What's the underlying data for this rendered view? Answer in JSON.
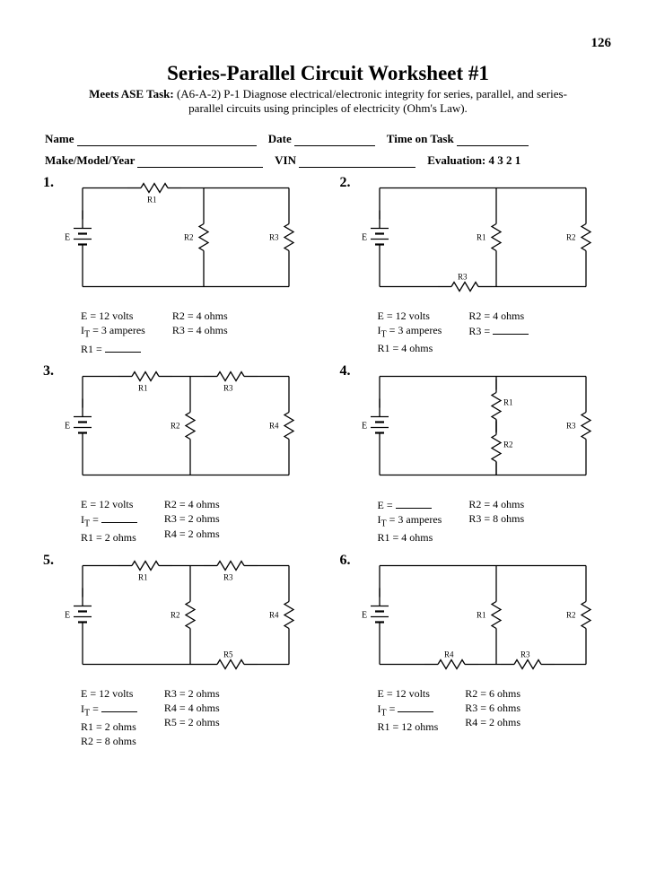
{
  "page_number": "126",
  "title": "Series-Parallel Circuit Worksheet #1",
  "subtitle_prefix": "Meets ASE Task:",
  "subtitle_body": "(A6-A-2) P-1  Diagnose electrical/electronic integrity for series, parallel, and series-parallel circuits using principles of electricity (Ohm's Law).",
  "field_labels": {
    "name": "Name",
    "date": "Date",
    "time": "Time on Task",
    "mmy": "Make/Model/Year",
    "vin": "VIN",
    "eval": "Evaluation:   4    3    2    1"
  },
  "stroke_color": "#000000",
  "label_font_size": 9,
  "problems": [
    {
      "num": "1.",
      "left": [
        "E = 12 volts",
        "I<sub>T</sub> = 3 amperes",
        "R1 = ______"
      ],
      "right": [
        "R2 = 4 ohms",
        "R3 = 4 ohms"
      ]
    },
    {
      "num": "2.",
      "left": [
        "E = 12 volts",
        "I<sub>T</sub> = 3 amperes",
        "R1 = 4 ohms"
      ],
      "right": [
        "R2 = 4 ohms",
        "R3 = ______"
      ]
    },
    {
      "num": "3.",
      "left": [
        "E = 12 volts",
        "I<sub>T</sub> = ______",
        "R1 = 2 ohms"
      ],
      "right": [
        "R2 = 4 ohms",
        "R3 = 2 ohms",
        "R4 = 2 ohms"
      ]
    },
    {
      "num": "4.",
      "left": [
        "E = ______",
        "I<sub>T</sub> = 3 amperes",
        "R1 = 4 ohms"
      ],
      "right": [
        "R2 = 4 ohms",
        "R3 = 8 ohms"
      ]
    },
    {
      "num": "5.",
      "left": [
        "E = 12 volts",
        "I<sub>T</sub> = ______",
        "R1 = 2 ohms",
        "R2 = 8 ohms"
      ],
      "right": [
        "R3 = 2 ohms",
        "R4 = 4 ohms",
        "R5 = 2 ohms"
      ]
    },
    {
      "num": "6.",
      "left": [
        "E = 12 volts",
        "I<sub>T</sub> = ______",
        "R1 = 12 ohms"
      ],
      "right": [
        "R2 = 6 ohms",
        "R3 = 6 ohms",
        "R4 = 2 ohms"
      ]
    }
  ]
}
